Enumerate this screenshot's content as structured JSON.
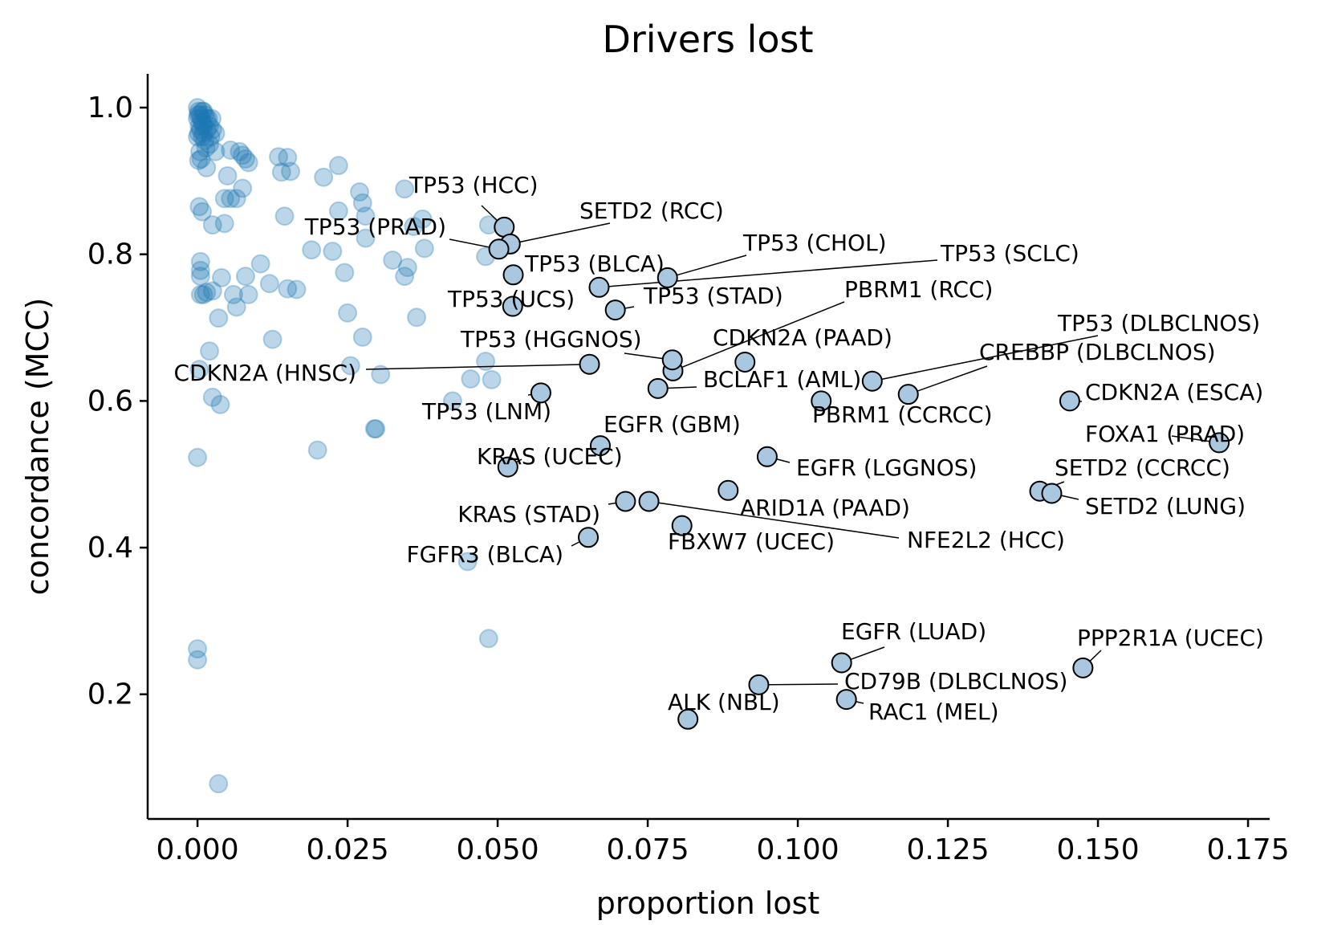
{
  "chart_data": {
    "type": "scatter",
    "title": "Drivers lost",
    "xlabel": "proportion lost",
    "ylabel": "concordance (MCC)",
    "xlim": [
      -0.0083,
      0.1786
    ],
    "ylim": [
      0.03,
      1.046
    ],
    "xticks": [
      0.0,
      0.025,
      0.05,
      0.075,
      0.1,
      0.125,
      0.15,
      0.175
    ],
    "xtick_labels": [
      "0.000",
      "0.025",
      "0.050",
      "0.075",
      "0.100",
      "0.125",
      "0.150",
      "0.175"
    ],
    "yticks": [
      0.2,
      0.4,
      0.6,
      0.8,
      1.0
    ],
    "ytick_labels": [
      "0.2",
      "0.4",
      "0.6",
      "0.8",
      "1.0"
    ],
    "grid": false,
    "colors": {
      "background_point": "#1f77b4",
      "highlight_point": "#a9c8e0"
    },
    "background_points": [
      [
        0.0,
        1.0
      ],
      [
        0.0002,
        0.995
      ],
      [
        0.0004,
        0.99
      ],
      [
        0.0006,
        0.985
      ],
      [
        0.0008,
        0.98
      ],
      [
        0.0003,
        0.975
      ],
      [
        0.0005,
        0.97
      ],
      [
        0.001,
        0.995
      ],
      [
        0.0012,
        0.99
      ],
      [
        0.0015,
        0.985
      ],
      [
        0.001,
        0.975
      ],
      [
        0.0002,
        0.965
      ],
      [
        0.0008,
        0.96
      ],
      [
        0.0012,
        0.955
      ],
      [
        0.0018,
        0.985
      ],
      [
        0.002,
        0.975
      ],
      [
        0.0025,
        0.97
      ],
      [
        0.0022,
        0.96
      ],
      [
        0.003,
        0.965
      ],
      [
        0.0014,
        0.945
      ],
      [
        0.0004,
        0.94
      ],
      [
        0.0006,
        0.93
      ],
      [
        0.0002,
        0.928
      ],
      [
        0.003,
        0.94
      ],
      [
        0.002,
        0.95
      ],
      [
        0.0016,
        0.97
      ],
      [
        0.0024,
        0.985
      ],
      [
        0.0008,
        0.995
      ],
      [
        0.0,
        0.985
      ],
      [
        0.0,
        0.96
      ],
      [
        0.0001,
        0.99
      ],
      [
        0.001,
        0.965
      ],
      [
        0.0015,
        0.918
      ],
      [
        0.005,
        0.907
      ],
      [
        0.0055,
        0.942
      ],
      [
        0.007,
        0.94
      ],
      [
        0.0075,
        0.935
      ],
      [
        0.008,
        0.93
      ],
      [
        0.0085,
        0.925
      ],
      [
        0.0055,
        0.876
      ],
      [
        0.0065,
        0.876
      ],
      [
        0.0045,
        0.876
      ],
      [
        0.0075,
        0.89
      ],
      [
        0.0003,
        0.865
      ],
      [
        0.0008,
        0.858
      ],
      [
        0.0025,
        0.84
      ],
      [
        0.0045,
        0.842
      ],
      [
        0.0005,
        0.79
      ],
      [
        0.0005,
        0.77
      ],
      [
        0.0005,
        0.745
      ],
      [
        0.0015,
        0.748
      ],
      [
        0.0025,
        0.75
      ],
      [
        0.004,
        0.768
      ],
      [
        0.0035,
        0.713
      ],
      [
        0.006,
        0.745
      ],
      [
        0.008,
        0.77
      ],
      [
        0.0085,
        0.745
      ],
      [
        0.0065,
        0.728
      ],
      [
        0.0005,
        0.778
      ],
      [
        0.001,
        0.745
      ],
      [
        0.002,
        0.668
      ],
      [
        0.0003,
        0.643
      ],
      [
        0.0025,
        0.605
      ],
      [
        0.0038,
        0.595
      ],
      [
        0.0,
        0.523
      ],
      [
        0.0,
        0.262
      ],
      [
        0.0,
        0.247
      ],
      [
        0.0035,
        0.078
      ],
      [
        0.0135,
        0.933
      ],
      [
        0.015,
        0.932
      ],
      [
        0.014,
        0.912
      ],
      [
        0.0155,
        0.913
      ],
      [
        0.0235,
        0.921
      ],
      [
        0.021,
        0.905
      ],
      [
        0.0145,
        0.852
      ],
      [
        0.0235,
        0.859
      ],
      [
        0.027,
        0.885
      ],
      [
        0.0275,
        0.87
      ],
      [
        0.028,
        0.852
      ],
      [
        0.028,
        0.822
      ],
      [
        0.019,
        0.806
      ],
      [
        0.0225,
        0.804
      ],
      [
        0.0245,
        0.775
      ],
      [
        0.0105,
        0.787
      ],
      [
        0.012,
        0.76
      ],
      [
        0.015,
        0.753
      ],
      [
        0.0165,
        0.752
      ],
      [
        0.0125,
        0.684
      ],
      [
        0.025,
        0.72
      ],
      [
        0.0275,
        0.687
      ],
      [
        0.0255,
        0.648
      ],
      [
        0.0305,
        0.636
      ],
      [
        0.02,
        0.533
      ],
      [
        0.0295,
        0.562
      ],
      [
        0.0297,
        0.562
      ],
      [
        0.0325,
        0.792
      ],
      [
        0.0345,
        0.889
      ],
      [
        0.035,
        0.782
      ],
      [
        0.0345,
        0.77
      ],
      [
        0.0365,
        0.714
      ],
      [
        0.0375,
        0.848
      ],
      [
        0.0378,
        0.808
      ],
      [
        0.036,
        0.838
      ],
      [
        0.0425,
        0.6
      ],
      [
        0.0455,
        0.63
      ],
      [
        0.048,
        0.654
      ],
      [
        0.049,
        0.629
      ],
      [
        0.0485,
        0.84
      ],
      [
        0.048,
        0.797
      ],
      [
        0.045,
        0.381
      ],
      [
        0.0485,
        0.276
      ]
    ],
    "highlighted_points": [
      {
        "label": "TP53 (HCC)",
        "x": 0.0511,
        "y": 0.837
      },
      {
        "label": "SETD2 (RCC)",
        "x": 0.0521,
        "y": 0.814
      },
      {
        "label": "TP53 (PRAD)",
        "x": 0.0502,
        "y": 0.807
      },
      {
        "label": "TP53 (BLCA)",
        "x": 0.0526,
        "y": 0.772
      },
      {
        "label": "TP53 (CHOL)",
        "x": 0.0783,
        "y": 0.768
      },
      {
        "label": "TP53 (SCLC)",
        "x": 0.0669,
        "y": 0.755
      },
      {
        "label": "TP53 (UCS)",
        "x": 0.0525,
        "y": 0.729
      },
      {
        "label": "TP53 (STAD)",
        "x": 0.0696,
        "y": 0.724
      },
      {
        "label": "PBRM1 (RCC)",
        "x": 0.0792,
        "y": 0.641
      },
      {
        "label": "TP53 (HGGNOS)",
        "x": 0.0791,
        "y": 0.656
      },
      {
        "label": "CDKN2A (PAAD)",
        "x": 0.0912,
        "y": 0.653
      },
      {
        "label": "CDKN2A (HNSC)",
        "x": 0.0653,
        "y": 0.65
      },
      {
        "label": "BCLAF1 (AML)",
        "x": 0.0767,
        "y": 0.617
      },
      {
        "label": "TP53 (DLBCLNOS)",
        "x": 0.1124,
        "y": 0.627
      },
      {
        "label": "CREBBP (DLBCLNOS)",
        "x": 0.1184,
        "y": 0.609
      },
      {
        "label": "PBRM1 (CCRCC)",
        "x": 0.1039,
        "y": 0.6
      },
      {
        "label": "CDKN2A (ESCA)",
        "x": 0.1453,
        "y": 0.6
      },
      {
        "label": "TP53 (LNM)",
        "x": 0.0572,
        "y": 0.611
      },
      {
        "label": "FOXA1 (PRAD)",
        "x": 0.1702,
        "y": 0.543
      },
      {
        "label": "EGFR (GBM)",
        "x": 0.0671,
        "y": 0.539
      },
      {
        "label": "KRAS (UCEC)",
        "x": 0.0517,
        "y": 0.51
      },
      {
        "label": "EGFR (LGGNOS)",
        "x": 0.0949,
        "y": 0.524
      },
      {
        "label": "SETD2 (CCRCC)",
        "x": 0.1403,
        "y": 0.477
      },
      {
        "label": "SETD2 (LUNG)",
        "x": 0.1423,
        "y": 0.474
      },
      {
        "label": "ARID1A (PAAD)",
        "x": 0.0884,
        "y": 0.478
      },
      {
        "label": "KRAS (STAD)",
        "x": 0.0713,
        "y": 0.463
      },
      {
        "label": "NFE2L2 (HCC)",
        "x": 0.0752,
        "y": 0.463
      },
      {
        "label": "FBXW7 (UCEC)",
        "x": 0.0807,
        "y": 0.43
      },
      {
        "label": "FGFR3 (BLCA)",
        "x": 0.0651,
        "y": 0.414
      },
      {
        "label": "EGFR (LUAD)",
        "x": 0.1073,
        "y": 0.243
      },
      {
        "label": "PPP2R1A (UCEC)",
        "x": 0.1475,
        "y": 0.236
      },
      {
        "label": "CD79B (DLBCLNOS)",
        "x": 0.0935,
        "y": 0.213
      },
      {
        "label": "RAC1 (MEL)",
        "x": 0.1081,
        "y": 0.193
      },
      {
        "label": "ALK (NBL)",
        "x": 0.0817,
        "y": 0.166
      }
    ]
  }
}
